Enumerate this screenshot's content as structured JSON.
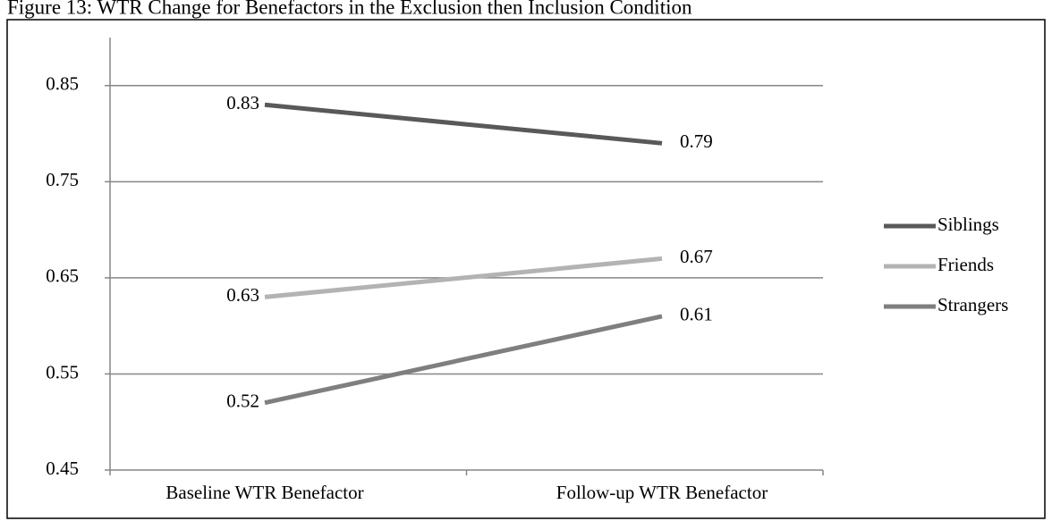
{
  "chart_data": {
    "type": "line",
    "title": "Figure 13: WTR Change for Benefactors in the Exclusion then Inclusion Condition",
    "categories": [
      "Baseline WTR Benefactor",
      "Follow-up WTR Benefactor"
    ],
    "series": [
      {
        "name": "Siblings",
        "color": "#595959",
        "values": [
          0.83,
          0.79
        ]
      },
      {
        "name": "Friends",
        "color": "#b3b3b3",
        "values": [
          0.63,
          0.67
        ]
      },
      {
        "name": "Strangers",
        "color": "#7f7f7f",
        "values": [
          0.52,
          0.61
        ]
      }
    ],
    "ylim": [
      0.45,
      0.9
    ],
    "yticks": [
      0.45,
      0.55,
      0.65,
      0.75,
      0.85
    ],
    "grid": true,
    "legend": "right"
  }
}
